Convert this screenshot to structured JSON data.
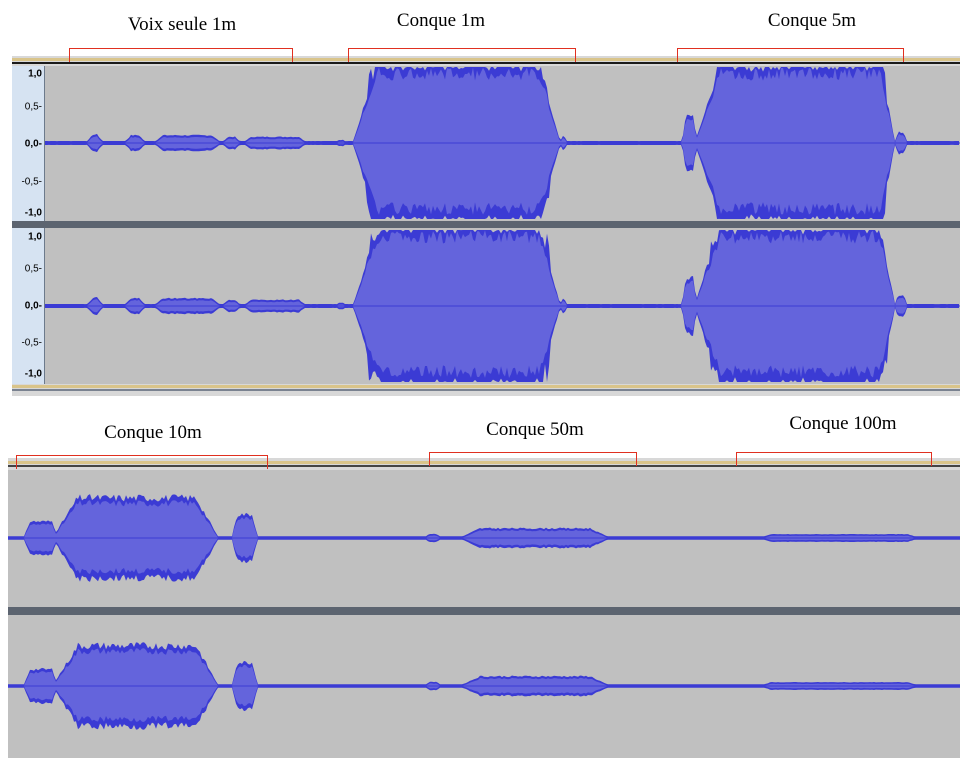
{
  "top_panel": {
    "segments": [
      {
        "label": "Voix seule 1m"
      },
      {
        "label": "Conque 1m"
      },
      {
        "label": "Conque 5m"
      }
    ],
    "axis_ticks": [
      {
        "label": "1,0",
        "strong": true
      },
      {
        "label": "0,5-",
        "strong": false
      },
      {
        "label": "0,0-",
        "strong": true
      },
      {
        "label": "-0,5-",
        "strong": false
      },
      {
        "label": "-1,0",
        "strong": true
      }
    ]
  },
  "bottom_panel": {
    "segments": [
      {
        "label": "Conque 10m"
      },
      {
        "label": "Conque 50m"
      },
      {
        "label": "Conque 100m"
      }
    ]
  },
  "colors": {
    "waveform_fill": "#6464dc",
    "waveform_peak": "#3b3bd4",
    "track_background": "#c0c0c0",
    "bracket": "#e03020"
  }
}
